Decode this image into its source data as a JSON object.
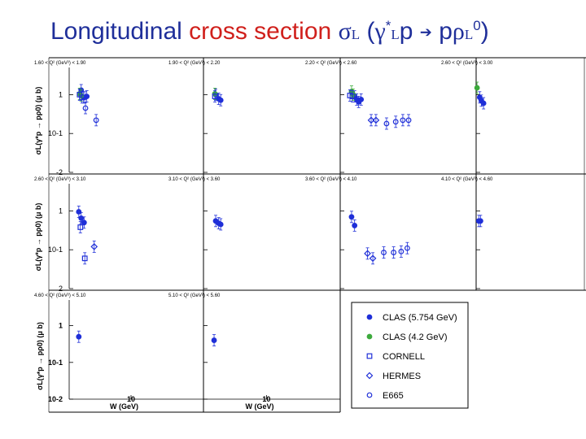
{
  "title": {
    "part1": "Longitudinal",
    "part2": "cross section",
    "sigma": "σ",
    "sigma_sub": "L",
    "paren_open": "(",
    "gamma": "γ",
    "gamma_sup": "*",
    "gamma_sub": "L",
    "p1": "p",
    "arrow": "➔",
    "p2": "p",
    "rho": "ρ",
    "rho_sub": "L",
    "rho_sup": "0",
    "paren_close": ")"
  },
  "colors": {
    "clas": "#1f2fd8",
    "clas42": "#3caa3c",
    "title_blue": "#1f2f9a",
    "title_red": "#d0201c"
  },
  "chart_data": {
    "type": "scatter",
    "x_scale": "log",
    "y_scale": "log",
    "xlabel": "W (GeV)",
    "x_tick_label": "10",
    "ylabel_rows": [
      "σL(γ*p → pρ0) (μ b)",
      "σL(γ*p → pρ0) (μ b)",
      "σL(γ*p → pρ0) (μ b)"
    ],
    "y_tick_labels": [
      [
        "1",
        "10-1",
        "-2"
      ],
      [
        "1",
        "10-1",
        "2"
      ],
      [
        "1",
        "10-1",
        "10-2"
      ]
    ],
    "panels": [
      {
        "label": "1.60 < Q² (GeV²) < 1.90",
        "row": 0,
        "col": 0,
        "ylim": [
          0.01,
          5
        ],
        "xlim": [
          1.4,
          100
        ],
        "series": [
          {
            "name": "CLAS (5.754 GeV)",
            "x": [
              2.05,
              2.2,
              2.3,
              2.45
            ],
            "y": [
              1.3,
              0.85,
              0.85,
              0.9
            ]
          },
          {
            "name": "CLAS (4.2 GeV)",
            "x": [
              1.95,
              2.05
            ],
            "y": [
              1.05,
              0.95
            ]
          },
          {
            "name": "CORNELL",
            "x": [
              1.95,
              2.1
            ],
            "y": [
              1.0,
              0.85
            ]
          },
          {
            "name": "HERMES",
            "x": [],
            "y": []
          },
          {
            "name": "E665",
            "x": [
              2.35,
              3.3
            ],
            "y": [
              0.45,
              0.22
            ]
          }
        ]
      },
      {
        "label": "1.90 < Q² (GeV²) < 2.20",
        "row": 0,
        "col": 1,
        "ylim": [
          0.01,
          5
        ],
        "xlim": [
          1.4,
          100
        ],
        "series": [
          {
            "name": "CLAS (5.754 GeV)",
            "x": [
              2.05,
              2.25,
              2.4
            ],
            "y": [
              1.0,
              0.78,
              0.72
            ]
          },
          {
            "name": "CLAS (4.2 GeV)",
            "x": [
              2.0
            ],
            "y": [
              1.05
            ]
          },
          {
            "name": "CORNELL",
            "x": [
              2.0
            ],
            "y": [
              0.9
            ]
          },
          {
            "name": "HERMES",
            "x": [],
            "y": []
          },
          {
            "name": "E665",
            "x": [],
            "y": []
          }
        ]
      },
      {
        "label": "2.20 < Q² (GeV²) < 2.60",
        "row": 0,
        "col": 2,
        "ylim": [
          0.01,
          5
        ],
        "xlim": [
          1.4,
          100
        ],
        "series": [
          {
            "name": "CLAS (5.754 GeV)",
            "x": [
              2.2,
              2.35,
              2.5,
              2.7
            ],
            "y": [
              0.9,
              0.75,
              0.65,
              0.75
            ]
          },
          {
            "name": "CLAS (4.2 GeV)",
            "x": [
              2.0,
              2.1
            ],
            "y": [
              1.2,
              1.0
            ]
          },
          {
            "name": "CORNELL",
            "x": [
              1.9,
              2.05
            ],
            "y": [
              0.95,
              0.9
            ]
          },
          {
            "name": "HERMES",
            "x": [
              3.7,
              4.3
            ],
            "y": [
              0.22,
              0.22
            ]
          },
          {
            "name": "E665",
            "x": [
              6.0,
              8.0,
              10.0,
              12.0
            ],
            "y": [
              0.18,
              0.2,
              0.22,
              0.22
            ]
          }
        ]
      },
      {
        "label": "2.60 < Q² (GeV²) < 3.00",
        "row": 0,
        "col": 3,
        "ylim": [
          0.01,
          5
        ],
        "xlim": [
          1.4,
          100
        ],
        "series": [
          {
            "name": "CLAS (5.754 GeV)",
            "x": [
              1.6,
              1.7,
              1.85
            ],
            "y": [
              0.85,
              0.7,
              0.6
            ]
          },
          {
            "name": "CLAS (4.2 GeV)",
            "x": [
              1.45
            ],
            "y": [
              1.5
            ]
          },
          {
            "name": "CORNELL",
            "x": [],
            "y": []
          },
          {
            "name": "HERMES",
            "x": [],
            "y": []
          },
          {
            "name": "E665",
            "x": [],
            "y": []
          }
        ]
      },
      {
        "label": "2.60 < Q² (GeV²) < 3.10",
        "row": 1,
        "col": 0,
        "ylim": [
          0.01,
          5
        ],
        "xlim": [
          1.4,
          100
        ],
        "series": [
          {
            "name": "CLAS (5.754 GeV)",
            "x": [
              1.9,
              2.05,
              2.25
            ],
            "y": [
              0.95,
              0.65,
              0.5
            ]
          },
          {
            "name": "CLAS (4.2 GeV)",
            "x": [],
            "y": []
          },
          {
            "name": "CORNELL",
            "x": [
              2.0,
              2.3
            ],
            "y": [
              0.38,
              0.06
            ]
          },
          {
            "name": "HERMES",
            "x": [
              3.1
            ],
            "y": [
              0.12
            ]
          },
          {
            "name": "E665",
            "x": [],
            "y": []
          }
        ]
      },
      {
        "label": "3.10 < Q² (GeV²) < 3.60",
        "row": 1,
        "col": 1,
        "ylim": [
          0.01,
          5
        ],
        "xlim": [
          1.4,
          100
        ],
        "series": [
          {
            "name": "CLAS (5.754 GeV)",
            "x": [
              2.05,
              2.25,
              2.4
            ],
            "y": [
              0.55,
              0.48,
              0.45
            ]
          },
          {
            "name": "CLAS (4.2 GeV)",
            "x": [],
            "y": []
          },
          {
            "name": "CORNELL",
            "x": [],
            "y": []
          },
          {
            "name": "HERMES",
            "x": [],
            "y": []
          },
          {
            "name": "E665",
            "x": [],
            "y": []
          }
        ]
      },
      {
        "label": "3.60 < Q² (GeV²) < 4.10",
        "row": 1,
        "col": 2,
        "ylim": [
          0.01,
          5
        ],
        "xlim": [
          1.4,
          100
        ],
        "series": [
          {
            "name": "CLAS (5.754 GeV)",
            "x": [
              2.0,
              2.2
            ],
            "y": [
              0.7,
              0.42
            ]
          },
          {
            "name": "CLAS (4.2 GeV)",
            "x": [],
            "y": []
          },
          {
            "name": "CORNELL",
            "x": [],
            "y": []
          },
          {
            "name": "HERMES",
            "x": [
              3.3,
              3.9
            ],
            "y": [
              0.08,
              0.06
            ]
          },
          {
            "name": "E665",
            "x": [
              5.5,
              7.5,
              9.5,
              11.5
            ],
            "y": [
              0.085,
              0.085,
              0.09,
              0.11
            ]
          }
        ]
      },
      {
        "label": "4.10 < Q² (GeV²) < 4.60",
        "row": 1,
        "col": 3,
        "ylim": [
          0.01,
          5
        ],
        "xlim": [
          1.4,
          100
        ],
        "series": [
          {
            "name": "CLAS (5.754 GeV)",
            "x": [
              1.55,
              1.65
            ],
            "y": [
              0.55,
              0.55
            ]
          },
          {
            "name": "CLAS (4.2 GeV)",
            "x": [],
            "y": []
          },
          {
            "name": "CORNELL",
            "x": [],
            "y": []
          },
          {
            "name": "HERMES",
            "x": [],
            "y": []
          },
          {
            "name": "E665",
            "x": [],
            "y": []
          }
        ]
      },
      {
        "label": "4.60 < Q² (GeV²) < 5.10",
        "row": 2,
        "col": 0,
        "ylim": [
          0.01,
          5
        ],
        "xlim": [
          1.4,
          100
        ],
        "series": [
          {
            "name": "CLAS (5.754 GeV)",
            "x": [
              1.9
            ],
            "y": [
              0.5
            ]
          },
          {
            "name": "CLAS (4.2 GeV)",
            "x": [],
            "y": []
          },
          {
            "name": "CORNELL",
            "x": [],
            "y": []
          },
          {
            "name": "HERMES",
            "x": [],
            "y": []
          },
          {
            "name": "E665",
            "x": [],
            "y": []
          }
        ]
      },
      {
        "label": "5.10 < Q² (GeV²) < 5.60",
        "row": 2,
        "col": 1,
        "ylim": [
          0.01,
          5
        ],
        "xlim": [
          1.4,
          100
        ],
        "series": [
          {
            "name": "CLAS (5.754 GeV)",
            "x": [
              1.95
            ],
            "y": [
              0.4
            ]
          },
          {
            "name": "CLAS (4.2 GeV)",
            "x": [],
            "y": []
          },
          {
            "name": "CORNELL",
            "x": [],
            "y": []
          },
          {
            "name": "HERMES",
            "x": [],
            "y": []
          },
          {
            "name": "E665",
            "x": [],
            "y": []
          }
        ]
      }
    ],
    "legend": [
      {
        "label": "CLAS (5.754 GeV)",
        "marker": "filled-circle",
        "color": "#1f2fd8"
      },
      {
        "label": "CLAS (4.2 GeV)",
        "marker": "filled-circle",
        "color": "#3caa3c"
      },
      {
        "label": "CORNELL",
        "marker": "open-square",
        "color": "#1f2fd8"
      },
      {
        "label": "HERMES",
        "marker": "open-diamond",
        "color": "#1f2fd8"
      },
      {
        "label": "E665",
        "marker": "open-circle",
        "color": "#1f2fd8"
      }
    ]
  }
}
